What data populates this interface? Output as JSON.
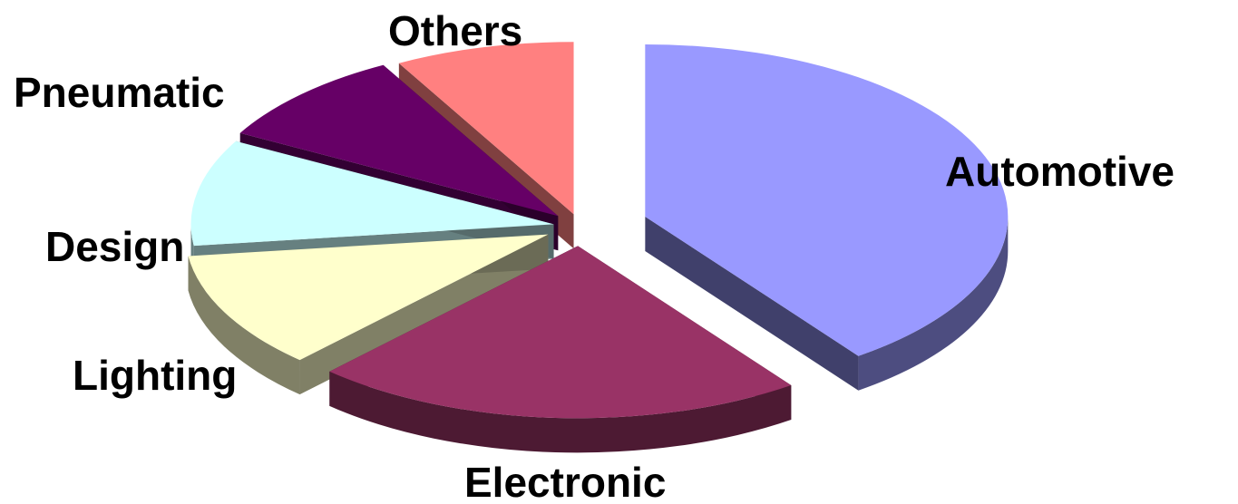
{
  "chart_data": {
    "type": "pie",
    "style": "3d-exploded",
    "title": "",
    "categories": [
      "Automotive",
      "Electronic",
      "Lighting",
      "Design",
      "Pneumatic",
      "Others"
    ],
    "values": [
      40,
      22,
      11,
      10,
      9,
      8
    ],
    "unit": "%",
    "colors": [
      "#9999FF",
      "#993366",
      "#FFFFCC",
      "#CCFFFF",
      "#660066",
      "#FF8080"
    ],
    "legend": "none",
    "data_labels": "category-name"
  }
}
